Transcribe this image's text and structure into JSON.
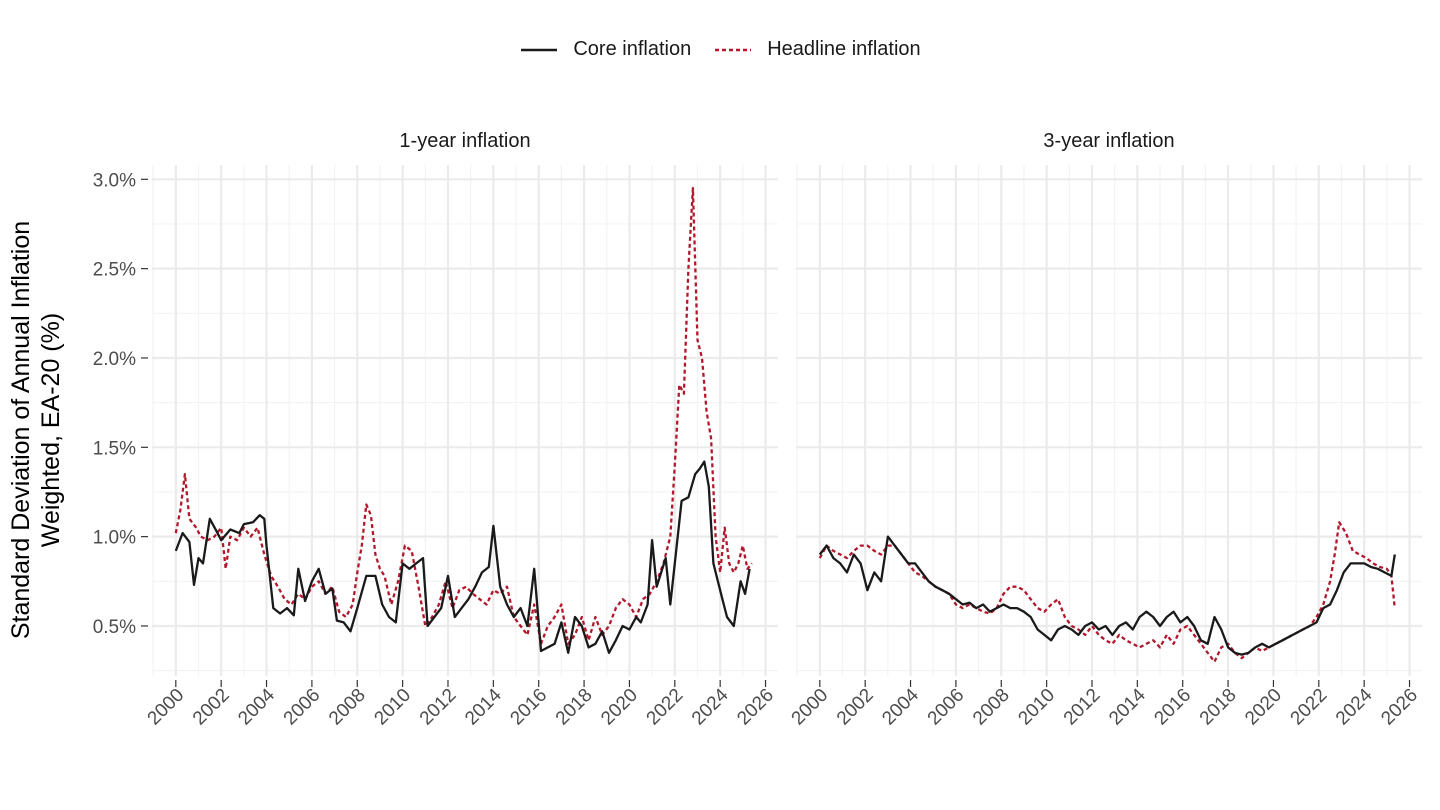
{
  "legend": {
    "core": "Core inflation",
    "headline": "Headline inflation"
  },
  "y_label_1": "Standard Deviation of Annual Inflation",
  "y_label_2": "Weighted, EA-20 (%)",
  "colors": {
    "core": "#1a1a1a",
    "headline": "#b2182b",
    "grid": "#ebebeb"
  },
  "chart_data": {
    "type": "line",
    "facets": [
      "1-year inflation",
      "3-year inflation"
    ],
    "ylabel": "Standard Deviation of Annual Inflation Weighted, EA-20 (%)",
    "xlim": [
      1998.95,
      2026.55
    ],
    "ylim": [
      0.22,
      3.08
    ],
    "x_ticks": [
      2000,
      2002,
      2004,
      2006,
      2008,
      2010,
      2012,
      2014,
      2016,
      2018,
      2020,
      2022,
      2024,
      2026
    ],
    "y_ticks": [
      0.5,
      1.0,
      1.5,
      2.0,
      2.5,
      3.0
    ],
    "y_tick_labels": [
      "0.5%",
      "1.0%",
      "1.5%",
      "2.0%",
      "2.5%",
      "3.0%"
    ],
    "grid": true,
    "legend_position": "top",
    "panels": [
      {
        "facet": "1-year inflation",
        "series": [
          {
            "name": "Core inflation",
            "style": "solid",
            "x": [
              2000.0,
              2000.3,
              2000.6,
              2000.8,
              2001.0,
              2001.2,
              2001.5,
              2001.8,
              2002.0,
              2002.4,
              2002.8,
              2003.0,
              2003.4,
              2003.7,
              2003.9,
              2004.0,
              2004.3,
              2004.6,
              2004.9,
              2005.2,
              2005.4,
              2005.7,
              2006.0,
              2006.3,
              2006.6,
              2006.9,
              2007.1,
              2007.4,
              2007.7,
              2008.0,
              2008.4,
              2008.8,
              2009.1,
              2009.4,
              2009.7,
              2010.0,
              2010.3,
              2010.6,
              2010.9,
              2011.1,
              2011.4,
              2011.7,
              2012.0,
              2012.3,
              2012.6,
              2012.9,
              2013.2,
              2013.5,
              2013.8,
              2014.0,
              2014.3,
              2014.6,
              2014.9,
              2015.2,
              2015.5,
              2015.8,
              2016.1,
              2016.4,
              2016.7,
              2017.0,
              2017.3,
              2017.6,
              2017.9,
              2018.2,
              2018.5,
              2018.8,
              2019.1,
              2019.4,
              2019.7,
              2020.0,
              2020.3,
              2020.5,
              2020.8,
              2021.0,
              2021.2,
              2021.4,
              2021.6,
              2021.8,
              2022.0,
              2022.3,
              2022.6,
              2022.9,
              2023.1,
              2023.3,
              2023.5,
              2023.7,
              2023.9,
              2024.1,
              2024.3,
              2024.6,
              2024.9,
              2025.1,
              2025.3
            ],
            "y": [
              0.92,
              1.02,
              0.97,
              0.73,
              0.88,
              0.85,
              1.1,
              1.03,
              0.98,
              1.04,
              1.02,
              1.07,
              1.08,
              1.12,
              1.1,
              0.95,
              0.6,
              0.57,
              0.6,
              0.56,
              0.82,
              0.64,
              0.75,
              0.82,
              0.68,
              0.71,
              0.53,
              0.52,
              0.47,
              0.6,
              0.78,
              0.78,
              0.62,
              0.55,
              0.52,
              0.85,
              0.82,
              0.85,
              0.88,
              0.5,
              0.55,
              0.6,
              0.78,
              0.55,
              0.6,
              0.65,
              0.72,
              0.8,
              0.83,
              1.06,
              0.72,
              0.62,
              0.55,
              0.6,
              0.5,
              0.82,
              0.36,
              0.38,
              0.4,
              0.52,
              0.35,
              0.55,
              0.5,
              0.38,
              0.4,
              0.47,
              0.35,
              0.42,
              0.5,
              0.48,
              0.55,
              0.52,
              0.62,
              0.98,
              0.72,
              0.8,
              0.88,
              0.62,
              0.85,
              1.2,
              1.22,
              1.35,
              1.38,
              1.42,
              1.28,
              0.85,
              0.75,
              0.65,
              0.55,
              0.5,
              0.75,
              0.68,
              0.82
            ]
          },
          {
            "name": "Headline inflation",
            "style": "dashed",
            "x": [
              2000.0,
              2000.2,
              2000.4,
              2000.6,
              2000.9,
              2001.1,
              2001.4,
              2001.7,
              2002.0,
              2002.2,
              2002.4,
              2002.7,
              2003.0,
              2003.3,
              2003.6,
              2003.9,
              2004.2,
              2004.5,
              2004.8,
              2005.1,
              2005.4,
              2005.7,
              2006.0,
              2006.3,
              2006.6,
              2006.9,
              2007.2,
              2007.5,
              2007.8,
              2008.0,
              2008.2,
              2008.4,
              2008.6,
              2008.8,
              2009.0,
              2009.2,
              2009.5,
              2009.8,
              2010.1,
              2010.4,
              2010.7,
              2011.0,
              2011.3,
              2011.6,
              2011.9,
              2012.2,
              2012.5,
              2012.8,
              2013.1,
              2013.4,
              2013.7,
              2014.0,
              2014.3,
              2014.6,
              2014.9,
              2015.2,
              2015.5,
              2015.8,
              2016.1,
              2016.4,
              2016.7,
              2017.0,
              2017.3,
              2017.6,
              2017.9,
              2018.2,
              2018.5,
              2018.8,
              2019.1,
              2019.4,
              2019.7,
              2020.0,
              2020.3,
              2020.6,
              2020.9,
              2021.2,
              2021.5,
              2021.8,
              2022.0,
              2022.2,
              2022.4,
              2022.6,
              2022.8,
              2023.0,
              2023.2,
              2023.4,
              2023.6,
              2023.8,
              2024.0,
              2024.2,
              2024.4,
              2024.6,
              2024.8,
              2025.0,
              2025.2,
              2025.4
            ],
            "y": [
              1.02,
              1.15,
              1.35,
              1.1,
              1.05,
              1.0,
              0.98,
              1.0,
              1.05,
              0.82,
              1.0,
              0.98,
              1.05,
              1.0,
              1.05,
              0.9,
              0.78,
              0.72,
              0.65,
              0.62,
              0.68,
              0.65,
              0.72,
              0.75,
              0.68,
              0.72,
              0.58,
              0.55,
              0.62,
              0.8,
              0.95,
              1.18,
              1.12,
              0.9,
              0.82,
              0.78,
              0.62,
              0.75,
              0.95,
              0.92,
              0.72,
              0.5,
              0.55,
              0.62,
              0.75,
              0.6,
              0.7,
              0.72,
              0.68,
              0.65,
              0.62,
              0.7,
              0.68,
              0.72,
              0.55,
              0.5,
              0.45,
              0.62,
              0.4,
              0.5,
              0.55,
              0.62,
              0.4,
              0.45,
              0.55,
              0.42,
              0.55,
              0.45,
              0.5,
              0.6,
              0.65,
              0.62,
              0.55,
              0.65,
              0.68,
              0.75,
              0.85,
              1.0,
              1.4,
              1.85,
              1.8,
              2.5,
              2.95,
              2.1,
              2.0,
              1.7,
              1.55,
              1.0,
              0.8,
              1.05,
              0.85,
              0.8,
              0.85,
              0.95,
              0.82,
              0.85
            ]
          }
        ]
      },
      {
        "facet": "3-year inflation",
        "series": [
          {
            "name": "Core inflation",
            "style": "solid",
            "x": [
              2000.0,
              2000.3,
              2000.6,
              2000.9,
              2001.2,
              2001.5,
              2001.8,
              2002.1,
              2002.4,
              2002.7,
              2003.0,
              2003.3,
              2003.6,
              2003.9,
              2004.2,
              2004.5,
              2004.8,
              2005.1,
              2005.4,
              2005.7,
              2006.0,
              2006.3,
              2006.6,
              2006.9,
              2007.2,
              2007.5,
              2007.8,
              2008.1,
              2008.4,
              2008.7,
              2009.0,
              2009.3,
              2009.6,
              2009.9,
              2010.2,
              2010.5,
              2010.8,
              2011.1,
              2011.4,
              2011.7,
              2012.0,
              2012.3,
              2012.6,
              2012.9,
              2013.2,
              2013.5,
              2013.8,
              2014.1,
              2014.4,
              2014.7,
              2015.0,
              2015.3,
              2015.6,
              2015.9,
              2016.2,
              2016.5,
              2016.8,
              2017.1,
              2017.4,
              2017.7,
              2018.0,
              2018.3,
              2018.6,
              2018.9,
              2019.2,
              2019.5,
              2019.8,
              2020.1,
              2020.4,
              2020.7,
              2021.0,
              2021.3,
              2021.6,
              2021.9,
              2022.2,
              2022.5,
              2022.8,
              2023.1,
              2023.4,
              2023.7,
              2024.0,
              2024.3,
              2024.6,
              2024.9,
              2025.2,
              2025.35
            ],
            "y": [
              0.9,
              0.95,
              0.88,
              0.85,
              0.8,
              0.9,
              0.85,
              0.7,
              0.8,
              0.75,
              1.0,
              0.95,
              0.9,
              0.85,
              0.85,
              0.8,
              0.75,
              0.72,
              0.7,
              0.68,
              0.65,
              0.62,
              0.63,
              0.6,
              0.62,
              0.58,
              0.6,
              0.62,
              0.6,
              0.6,
              0.58,
              0.55,
              0.48,
              0.45,
              0.42,
              0.48,
              0.5,
              0.48,
              0.45,
              0.5,
              0.52,
              0.48,
              0.5,
              0.45,
              0.5,
              0.52,
              0.48,
              0.55,
              0.58,
              0.55,
              0.5,
              0.55,
              0.58,
              0.52,
              0.55,
              0.5,
              0.42,
              0.4,
              0.55,
              0.48,
              0.38,
              0.35,
              0.34,
              0.35,
              0.38,
              0.4,
              0.38,
              0.4,
              0.42,
              0.44,
              0.46,
              0.48,
              0.5,
              0.52,
              0.6,
              0.62,
              0.7,
              0.8,
              0.85,
              0.85,
              0.85,
              0.83,
              0.82,
              0.8,
              0.78,
              0.9
            ]
          },
          {
            "name": "Headline inflation",
            "style": "dashed",
            "x": [
              2000.0,
              2000.3,
              2000.6,
              2000.9,
              2001.2,
              2001.5,
              2001.8,
              2002.1,
              2002.4,
              2002.7,
              2003.0,
              2003.3,
              2003.6,
              2003.9,
              2004.2,
              2004.5,
              2004.8,
              2005.1,
              2005.4,
              2005.7,
              2006.0,
              2006.3,
              2006.6,
              2006.9,
              2007.2,
              2007.5,
              2007.8,
              2008.1,
              2008.4,
              2008.7,
              2009.0,
              2009.3,
              2009.6,
              2009.9,
              2010.2,
              2010.5,
              2010.8,
              2011.1,
              2011.4,
              2011.7,
              2012.0,
              2012.3,
              2012.6,
              2012.9,
              2013.2,
              2013.5,
              2013.8,
              2014.1,
              2014.4,
              2014.7,
              2015.0,
              2015.3,
              2015.6,
              2015.9,
              2016.2,
              2016.5,
              2016.8,
              2017.1,
              2017.4,
              2017.7,
              2018.0,
              2018.3,
              2018.6,
              2018.9,
              2019.2,
              2019.5,
              2019.8,
              2020.1,
              2020.4,
              2020.7,
              2021.0,
              2021.3,
              2021.6,
              2021.9,
              2022.2,
              2022.5,
              2022.7,
              2022.9,
              2023.2,
              2023.5,
              2023.8,
              2024.1,
              2024.4,
              2024.7,
              2025.0,
              2025.2,
              2025.35
            ],
            "y": [
              0.88,
              0.95,
              0.92,
              0.9,
              0.88,
              0.92,
              0.95,
              0.95,
              0.92,
              0.9,
              0.95,
              0.95,
              0.9,
              0.85,
              0.8,
              0.78,
              0.75,
              0.72,
              0.7,
              0.68,
              0.62,
              0.6,
              0.62,
              0.6,
              0.58,
              0.57,
              0.6,
              0.68,
              0.72,
              0.72,
              0.7,
              0.65,
              0.6,
              0.58,
              0.62,
              0.65,
              0.55,
              0.5,
              0.48,
              0.45,
              0.5,
              0.45,
              0.42,
              0.4,
              0.45,
              0.42,
              0.4,
              0.38,
              0.4,
              0.42,
              0.38,
              0.45,
              0.4,
              0.48,
              0.5,
              0.45,
              0.4,
              0.35,
              0.3,
              0.38,
              0.4,
              0.35,
              0.32,
              0.35,
              0.38,
              0.36,
              0.38,
              0.4,
              0.42,
              0.44,
              0.46,
              0.48,
              0.5,
              0.55,
              0.62,
              0.75,
              0.9,
              1.08,
              1.02,
              0.92,
              0.9,
              0.88,
              0.85,
              0.83,
              0.82,
              0.78,
              0.6
            ]
          }
        ]
      }
    ]
  }
}
